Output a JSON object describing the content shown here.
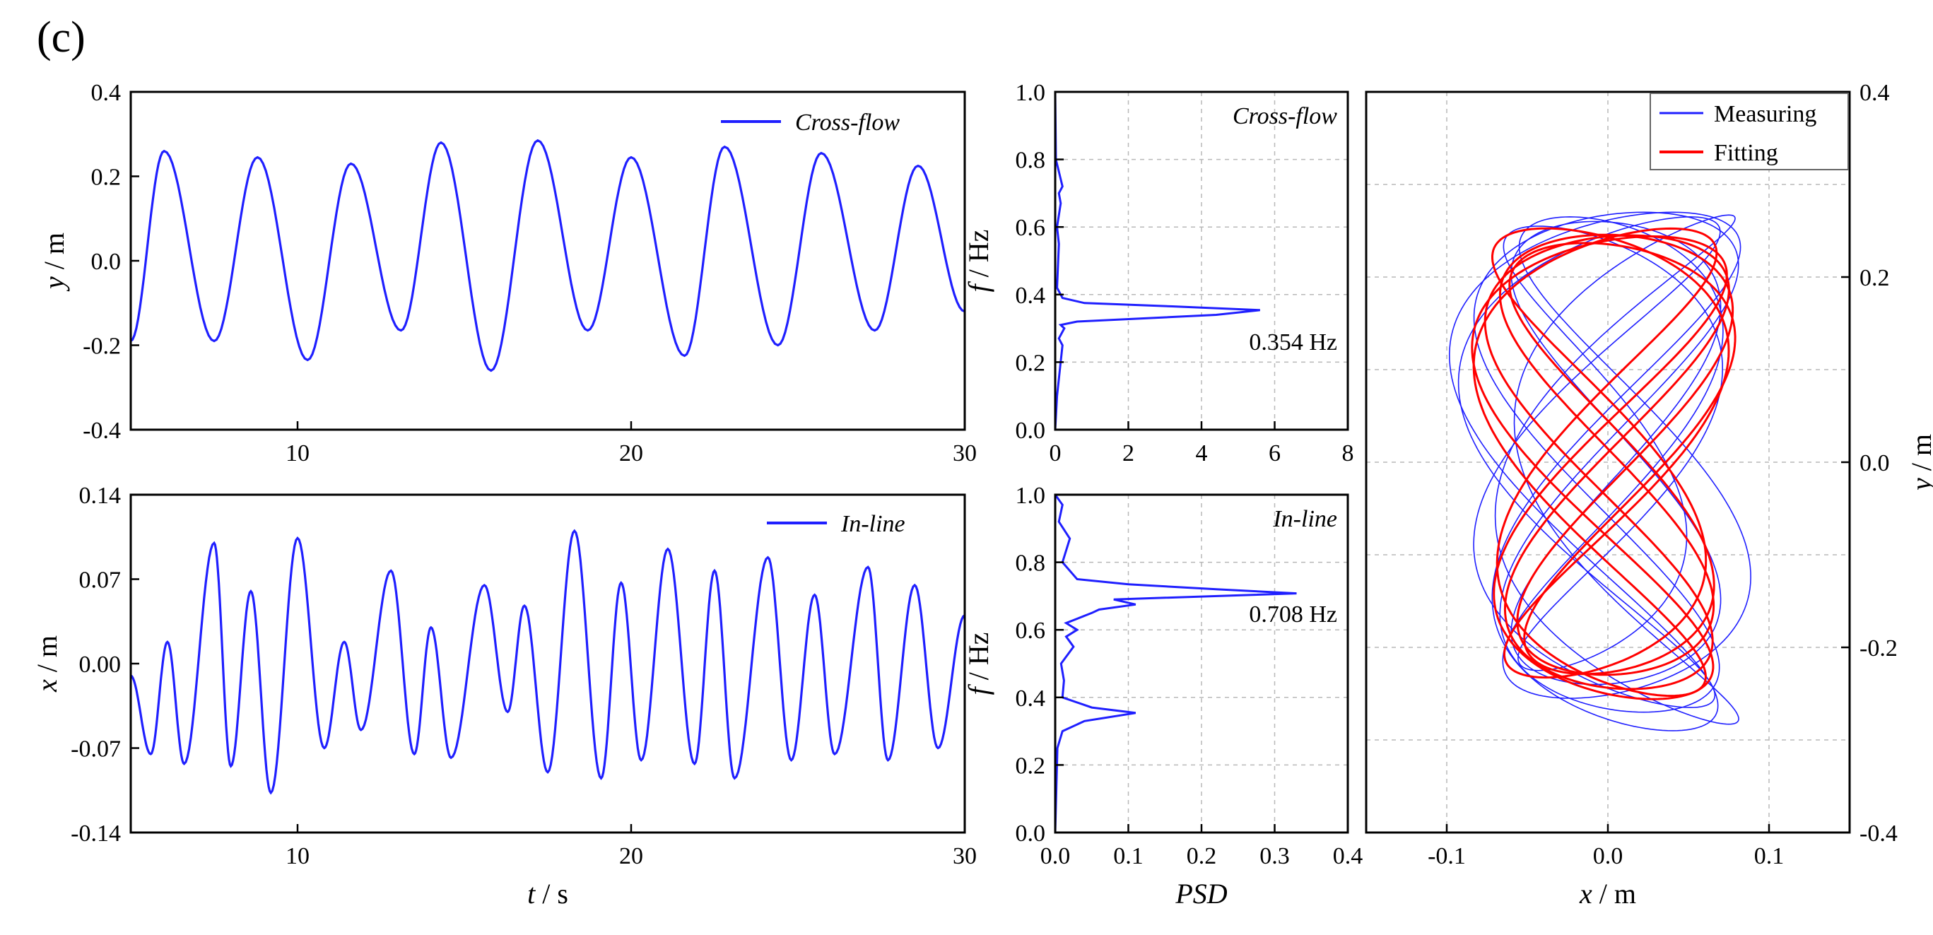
{
  "panel_label": "(c)",
  "colors": {
    "measuring": "#1f1fff",
    "fitting": "#ff0000",
    "axis": "#000000",
    "grid": "#b8b8b8"
  },
  "chart_data": [
    {
      "id": "ts_cross",
      "type": "line",
      "xlabel": "",
      "ylabel_var": "y",
      "ylabel_unit": "/ m",
      "xlim": [
        5,
        30
      ],
      "ylim": [
        -0.4,
        0.4
      ],
      "xticks": [
        10,
        20,
        30
      ],
      "yticks": [
        "-0.4",
        "-0.2",
        "0.0",
        "0.2",
        "0.4"
      ],
      "legend": "Cross-flow",
      "series": [
        {
          "name": "Cross-flow",
          "peaks": [
            [
              6.0,
              0.26
            ],
            [
              8.8,
              0.245
            ],
            [
              11.6,
              0.23
            ],
            [
              14.3,
              0.28
            ],
            [
              17.2,
              0.285
            ],
            [
              20.0,
              0.245
            ],
            [
              22.8,
              0.27
            ],
            [
              25.7,
              0.255
            ],
            [
              28.6,
              0.225
            ]
          ],
          "troughs": [
            [
              5.0,
              -0.19
            ],
            [
              7.5,
              -0.19
            ],
            [
              10.3,
              -0.235
            ],
            [
              13.1,
              -0.165
            ],
            [
              15.8,
              -0.26
            ],
            [
              18.7,
              -0.165
            ],
            [
              21.6,
              -0.225
            ],
            [
              24.4,
              -0.2
            ],
            [
              27.3,
              -0.165
            ],
            [
              30.0,
              -0.12
            ]
          ]
        }
      ]
    },
    {
      "id": "ts_inline",
      "type": "line",
      "xlabel_var": "t",
      "xlabel_unit": "/ s",
      "ylabel_var": "x",
      "ylabel_unit": "/ m",
      "xlim": [
        5,
        30
      ],
      "ylim": [
        -0.14,
        0.14
      ],
      "xticks": [
        10,
        20,
        30
      ],
      "yticks": [
        "-0.14",
        "-0.07",
        "0.00",
        "0.07",
        "0.14"
      ],
      "legend": "In-line",
      "series": [
        {
          "name": "In-line",
          "extrema": [
            [
              5.0,
              -0.01
            ],
            [
              5.6,
              -0.075
            ],
            [
              6.1,
              0.018
            ],
            [
              6.6,
              -0.083
            ],
            [
              7.5,
              0.1
            ],
            [
              8.0,
              -0.085
            ],
            [
              8.6,
              0.06
            ],
            [
              9.2,
              -0.107
            ],
            [
              10.0,
              0.104
            ],
            [
              10.8,
              -0.07
            ],
            [
              11.4,
              0.018
            ],
            [
              11.9,
              -0.055
            ],
            [
              12.8,
              0.077
            ],
            [
              13.5,
              -0.075
            ],
            [
              14.0,
              0.03
            ],
            [
              14.6,
              -0.078
            ],
            [
              15.6,
              0.065
            ],
            [
              16.3,
              -0.04
            ],
            [
              16.8,
              0.048
            ],
            [
              17.5,
              -0.09
            ],
            [
              18.3,
              0.11
            ],
            [
              19.1,
              -0.095
            ],
            [
              19.7,
              0.067
            ],
            [
              20.3,
              -0.08
            ],
            [
              21.1,
              0.095
            ],
            [
              21.9,
              -0.083
            ],
            [
              22.5,
              0.077
            ],
            [
              23.1,
              -0.095
            ],
            [
              24.1,
              0.088
            ],
            [
              24.8,
              -0.08
            ],
            [
              25.5,
              0.057
            ],
            [
              26.1,
              -0.075
            ],
            [
              27.1,
              0.08
            ],
            [
              27.7,
              -0.08
            ],
            [
              28.5,
              0.065
            ],
            [
              29.2,
              -0.07
            ],
            [
              30.0,
              0.04
            ]
          ]
        }
      ]
    },
    {
      "id": "psd_cross",
      "type": "line",
      "xlabel": "",
      "ylabel_var": "f",
      "ylabel_unit": "/ Hz",
      "xlim": [
        0,
        8
      ],
      "ylim": [
        0,
        1.0
      ],
      "xticks": [
        "0",
        "2",
        "4",
        "6",
        "8"
      ],
      "yticks": [
        "0.0",
        "0.2",
        "0.4",
        "0.6",
        "0.8",
        "1.0"
      ],
      "legend": "Cross-flow",
      "annotation": "0.354 Hz",
      "series": [
        {
          "name": "Cross-flow PSD",
          "points": [
            [
              0,
              0
            ],
            [
              0.05,
              0.1
            ],
            [
              0.2,
              0.25
            ],
            [
              0.1,
              0.27
            ],
            [
              0.25,
              0.3
            ],
            [
              0.15,
              0.31
            ],
            [
              0.6,
              0.32
            ],
            [
              4.4,
              0.34
            ],
            [
              5.6,
              0.354
            ],
            [
              3.2,
              0.365
            ],
            [
              0.8,
              0.375
            ],
            [
              0.2,
              0.39
            ],
            [
              0.05,
              0.42
            ],
            [
              0.1,
              0.55
            ],
            [
              0.05,
              0.6
            ],
            [
              0.15,
              0.67
            ],
            [
              0.1,
              0.7
            ],
            [
              0.2,
              0.72
            ],
            [
              0.02,
              0.8
            ],
            [
              0,
              1.0
            ]
          ]
        }
      ]
    },
    {
      "id": "psd_inline",
      "type": "line",
      "xlabel": "PSD",
      "ylabel_var": "f",
      "ylabel_unit": "/ Hz",
      "xlim": [
        0,
        0.4
      ],
      "ylim": [
        0,
        1.0
      ],
      "xticks": [
        "0.0",
        "0.1",
        "0.2",
        "0.3",
        "0.4"
      ],
      "yticks": [
        "0.0",
        "0.2",
        "0.4",
        "0.6",
        "0.8",
        "1.0"
      ],
      "legend": "In-line",
      "annotation": "0.708 Hz",
      "series": [
        {
          "name": "In-line PSD",
          "points": [
            [
              0,
              0
            ],
            [
              0.003,
              0.25
            ],
            [
              0.01,
              0.3
            ],
            [
              0.04,
              0.33
            ],
            [
              0.11,
              0.354
            ],
            [
              0.05,
              0.37
            ],
            [
              0.01,
              0.4
            ],
            [
              0.012,
              0.45
            ],
            [
              0.008,
              0.5
            ],
            [
              0.025,
              0.55
            ],
            [
              0.015,
              0.58
            ],
            [
              0.03,
              0.6
            ],
            [
              0.015,
              0.62
            ],
            [
              0.05,
              0.65
            ],
            [
              0.06,
              0.66
            ],
            [
              0.11,
              0.675
            ],
            [
              0.08,
              0.69
            ],
            [
              0.33,
              0.708
            ],
            [
              0.22,
              0.72
            ],
            [
              0.1,
              0.735
            ],
            [
              0.03,
              0.75
            ],
            [
              0.01,
              0.8
            ],
            [
              0.02,
              0.87
            ],
            [
              0.005,
              0.92
            ],
            [
              0.01,
              0.97
            ],
            [
              0,
              1.0
            ]
          ]
        }
      ]
    },
    {
      "id": "trajectory",
      "type": "line",
      "xlabel_var": "x",
      "xlabel_unit": "/ m",
      "ylabel_var": "y",
      "ylabel_unit": "/ m",
      "xlim": [
        -0.15,
        0.15
      ],
      "ylim": [
        -0.4,
        0.4
      ],
      "xticks": [
        "-0.1",
        "0.0",
        "0.1"
      ],
      "yticks": [
        "-0.4",
        "-0.2",
        "0.0",
        "0.2",
        "0.4"
      ],
      "legend_placement": "top-right",
      "series": [
        {
          "name": "Measuring",
          "shape": "figure-eight",
          "x_amplitude": 0.075,
          "y_amplitude": 0.27
        },
        {
          "name": "Fitting",
          "shape": "figure-eight",
          "x_amplitude": 0.07,
          "y_amplitude": 0.245
        }
      ]
    }
  ]
}
